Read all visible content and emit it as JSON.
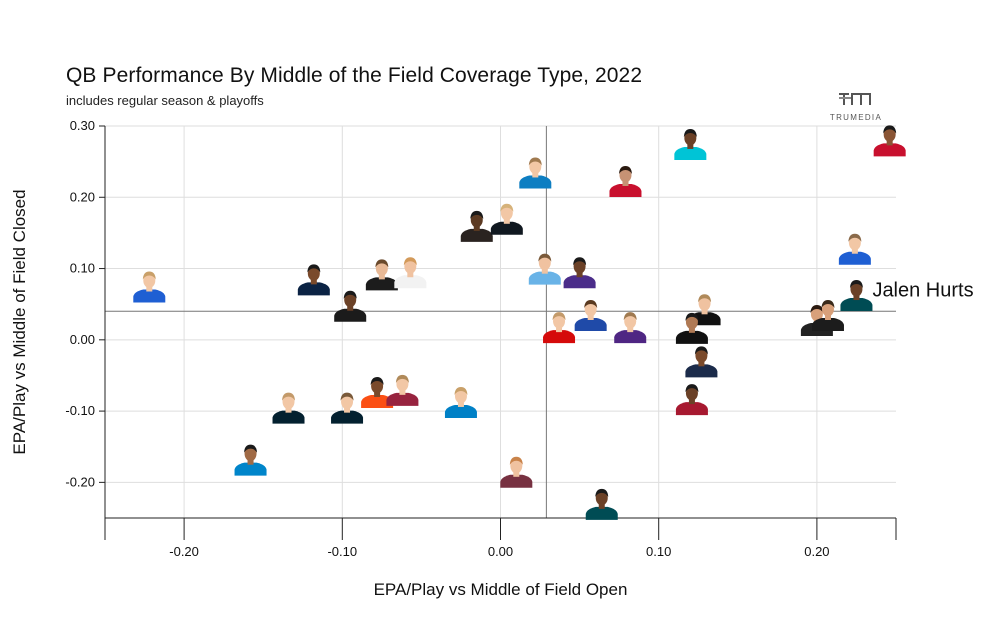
{
  "header": {
    "title": "QB Performance By Middle of the Field Coverage Type, 2022",
    "subtitle": "includes regular season & playoffs",
    "logo_text": "TRUMEDIA"
  },
  "colors": {
    "grid": "#dedede",
    "axis": "#222222",
    "reference_line": "#777777",
    "text": "#111111"
  },
  "chart_data": {
    "type": "scatter",
    "title": "QB Performance By Middle of the Field Coverage Type, 2022",
    "subtitle": "includes regular season & playoffs",
    "xlabel": "EPA/Play vs Middle of Field Open",
    "ylabel": "EPA/Play vs Middle of Field Closed",
    "xlim": [
      -0.25,
      0.25
    ],
    "ylim": [
      -0.25,
      0.3
    ],
    "x_ticks": [
      -0.2,
      -0.1,
      0.0,
      0.1,
      0.2
    ],
    "x_tick_labels": [
      "-0.20",
      "-0.10",
      "0.00",
      "0.10",
      "0.20"
    ],
    "y_ticks": [
      -0.2,
      -0.1,
      0.0,
      0.1,
      0.2,
      0.3
    ],
    "y_tick_labels": [
      "-0.20",
      "-0.10",
      "0.00",
      "0.10",
      "0.20",
      "0.30"
    ],
    "grid": true,
    "reference_lines": {
      "x": 0.029,
      "y": 0.04
    },
    "annotations": [
      {
        "text": "Jalen Hurts",
        "x": 0.225,
        "y": 0.055
      }
    ],
    "points": [
      {
        "x": -0.222,
        "y": 0.065,
        "skin": "#f2c7a5",
        "hair": "#c9a069",
        "jersey": "#1f5fd3"
      },
      {
        "x": -0.118,
        "y": 0.075,
        "skin": "#7a4a2b",
        "hair": "#1a1a1a",
        "jersey": "#0b2344"
      },
      {
        "x": -0.095,
        "y": 0.038,
        "skin": "#6b4127",
        "hair": "#1a1a1a",
        "jersey": "#1b1b1b"
      },
      {
        "x": -0.075,
        "y": 0.082,
        "skin": "#e8b996",
        "hair": "#6a4a2c",
        "jersey": "#1c1c1c"
      },
      {
        "x": -0.057,
        "y": 0.085,
        "skin": "#f0c2a0",
        "hair": "#d39a5a",
        "jersey": "#f2f2f2"
      },
      {
        "x": -0.015,
        "y": 0.15,
        "skin": "#5c3a22",
        "hair": "#1a1a1a",
        "jersey": "#2a2320"
      },
      {
        "x": 0.004,
        "y": 0.16,
        "skin": "#f2c7a5",
        "hair": "#d6b27a",
        "jersey": "#101820"
      },
      {
        "x": 0.022,
        "y": 0.225,
        "skin": "#f2c7a5",
        "hair": "#a07a50",
        "jersey": "#0d7ec2"
      },
      {
        "x": 0.028,
        "y": 0.09,
        "skin": "#f0c2a0",
        "hair": "#7a5a3a",
        "jersey": "#69b3e7"
      },
      {
        "x": 0.05,
        "y": 0.085,
        "skin": "#6b4127",
        "hair": "#1a1a1a",
        "jersey": "#4b2d8a"
      },
      {
        "x": 0.079,
        "y": 0.213,
        "skin": "#c79274",
        "hair": "#2a1a10",
        "jersey": "#c8102e"
      },
      {
        "x": 0.12,
        "y": 0.265,
        "skin": "#6b4127",
        "hair": "#1a1a1a",
        "jersey": "#00c4d6"
      },
      {
        "x": 0.246,
        "y": 0.27,
        "skin": "#8a5535",
        "hair": "#1a1a1a",
        "jersey": "#c8102e"
      },
      {
        "x": 0.224,
        "y": 0.118,
        "skin": "#f2c7a5",
        "hair": "#8a6a4a",
        "jersey": "#1f5fd3"
      },
      {
        "x": 0.225,
        "y": 0.053,
        "skin": "#6b4127",
        "hair": "#1a1a1a",
        "jersey": "#004c54"
      },
      {
        "x": 0.2,
        "y": 0.018,
        "skin": "#d8a07a",
        "hair": "#2a1a10",
        "jersey": "#222222"
      },
      {
        "x": 0.207,
        "y": 0.025,
        "skin": "#d8a07a",
        "hair": "#3a2a1a",
        "jersey": "#1c1c1c"
      },
      {
        "x": 0.129,
        "y": 0.033,
        "skin": "#f0c2a0",
        "hair": "#b08a5a",
        "jersey": "#111111"
      },
      {
        "x": 0.121,
        "y": 0.007,
        "skin": "#b07a55",
        "hair": "#1a1a1a",
        "jersey": "#111111"
      },
      {
        "x": 0.127,
        "y": -0.04,
        "skin": "#7a4a2b",
        "hair": "#1a1a1a",
        "jersey": "#1b2b4a"
      },
      {
        "x": 0.121,
        "y": -0.093,
        "skin": "#6b4127",
        "hair": "#1a1a1a",
        "jersey": "#a71930"
      },
      {
        "x": 0.037,
        "y": 0.008,
        "skin": "#f2c7a5",
        "hair": "#c39a6a",
        "jersey": "#d50a0a"
      },
      {
        "x": 0.057,
        "y": 0.025,
        "skin": "#f2c7a5",
        "hair": "#5a3a20",
        "jersey": "#1f4aa8"
      },
      {
        "x": 0.082,
        "y": 0.008,
        "skin": "#f2c7a5",
        "hair": "#a07a50",
        "jersey": "#4f2683"
      },
      {
        "x": -0.134,
        "y": -0.105,
        "skin": "#f2c7a5",
        "hair": "#c39a6a",
        "jersey": "#03202f"
      },
      {
        "x": -0.097,
        "y": -0.105,
        "skin": "#f2c7a5",
        "hair": "#7a5a3a",
        "jersey": "#03202f"
      },
      {
        "x": -0.078,
        "y": -0.083,
        "skin": "#7a4a2b",
        "hair": "#1a1a1a",
        "jersey": "#fb4f14"
      },
      {
        "x": -0.062,
        "y": -0.08,
        "skin": "#f2c7a5",
        "hair": "#b08a5a",
        "jersey": "#97233f"
      },
      {
        "x": -0.025,
        "y": -0.097,
        "skin": "#f2c7a5",
        "hair": "#c9a069",
        "jersey": "#0080c6"
      },
      {
        "x": -0.158,
        "y": -0.178,
        "skin": "#a06a45",
        "hair": "#1a1a1a",
        "jersey": "#0085ca"
      },
      {
        "x": 0.01,
        "y": -0.195,
        "skin": "#f0c2a0",
        "hair": "#c9834a",
        "jersey": "#773141"
      },
      {
        "x": 0.064,
        "y": -0.24,
        "skin": "#6b4127",
        "hair": "#1a1a1a",
        "jersey": "#004c54"
      }
    ]
  }
}
